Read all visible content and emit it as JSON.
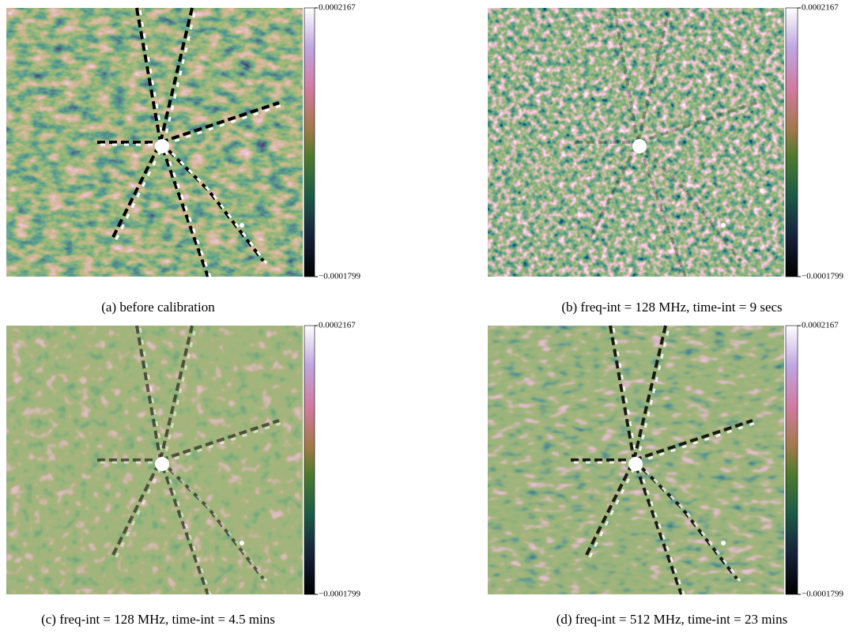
{
  "chart_data": [
    {
      "type": "heatmap",
      "caption": "(a) before calibration",
      "clim": [
        -0.0001799,
        0.0002167
      ],
      "cticks": [
        {
          "value": -0.0001799,
          "label": "−0.0001799"
        },
        0.0002167
      ]
    },
    {
      "type": "heatmap",
      "caption": "(b) freq-int = 128 MHz, time-int = 9 secs",
      "clim": [
        -0.0001799,
        0.0002167
      ],
      "cticks": [
        {
          "value": -0.0001799,
          "label": "−0.0001799"
        },
        0.0002167
      ]
    },
    {
      "type": "heatmap",
      "caption": "(c) freq-int = 128 MHz, time-int = 4.5 mins",
      "clim": [
        -0.0001799,
        0.0002167
      ],
      "cticks": [
        {
          "value": -0.0001799,
          "label": "−0.0001799"
        },
        0.0002167
      ]
    },
    {
      "type": "heatmap",
      "caption": "(d) freq-int = 512 MHz, time-int = 23 mins",
      "clim": [
        -0.0001799,
        0.0002167
      ],
      "cticks": [
        {
          "value": -0.0001799,
          "label": "−0.0001799"
        },
        0.0002167
      ]
    }
  ]
}
